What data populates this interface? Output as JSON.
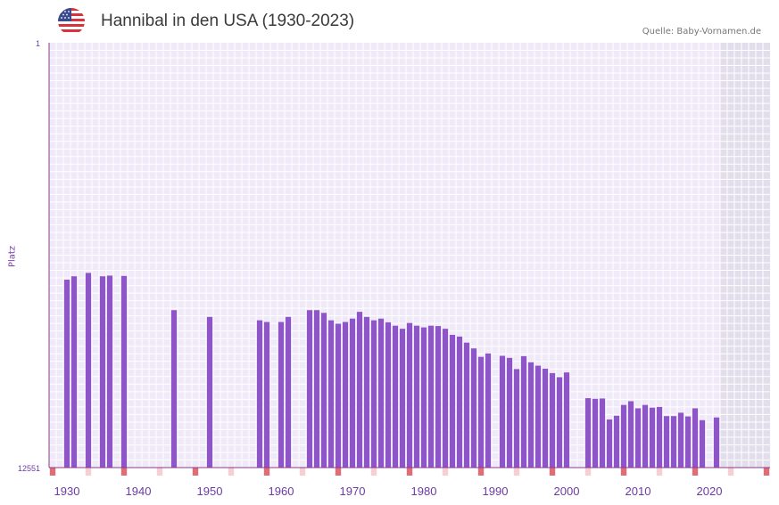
{
  "header": {
    "title": "Hannibal in den USA (1930-2023)",
    "source": "Quelle: Baby-Vornamen.de",
    "flag_icon": "us-flag-icon"
  },
  "colors": {
    "bar": "#8e55c8",
    "plot_bg": "#efe9f8",
    "shade_bg": "#e3deeb",
    "grid": "#ffffff",
    "axis": "#8a3a8a",
    "marker_strong": "#de6e76",
    "marker_light": "#f4cfd3",
    "xtick_text": "#6b3aa6"
  },
  "chart_data": {
    "type": "bar",
    "title": "Hannibal in den USA (1930-2023)",
    "xlabel": "",
    "ylabel": "Platz",
    "y_axis_inverted": true,
    "ylim": [
      1,
      12551
    ],
    "ytick_labels": [
      "1",
      "12551"
    ],
    "xlim": [
      1928,
      2029
    ],
    "xtick_labels": [
      "1930",
      "1940",
      "1950",
      "1960",
      "1970",
      "1980",
      "1990",
      "2000",
      "2010",
      "2020"
    ],
    "xticks": [
      1930,
      1940,
      1950,
      1960,
      1970,
      1980,
      1990,
      2000,
      2010,
      2020
    ],
    "shaded_from_year": 2022,
    "strong_marker_years": [
      1928,
      1938,
      1948,
      1958,
      1968,
      1978,
      1988,
      1998,
      2008,
      2018,
      2028
    ],
    "light_marker_years": [
      1933,
      1943,
      1953,
      1963,
      1973,
      1983,
      1993,
      2003,
      2013,
      2023
    ],
    "years": [
      1930,
      1931,
      1933,
      1935,
      1936,
      1938,
      1945,
      1950,
      1957,
      1958,
      1960,
      1961,
      1964,
      1965,
      1966,
      1967,
      1968,
      1969,
      1970,
      1971,
      1972,
      1973,
      1974,
      1975,
      1976,
      1977,
      1978,
      1979,
      1980,
      1981,
      1982,
      1983,
      1984,
      1985,
      1986,
      1987,
      1988,
      1989,
      1991,
      1992,
      1993,
      1994,
      1995,
      1996,
      1997,
      1998,
      1999,
      2000,
      2003,
      2004,
      2005,
      2006,
      2007,
      2008,
      2009,
      2010,
      2011,
      2012,
      2013,
      2014,
      2015,
      2016,
      2017,
      2018,
      2019,
      2021
    ],
    "ranks": [
      7000,
      6900,
      6800,
      6900,
      6880,
      6890,
      7900,
      8100,
      8200,
      8250,
      8250,
      8100,
      7900,
      7900,
      7980,
      8200,
      8300,
      8250,
      8150,
      7950,
      8100,
      8200,
      8150,
      8260,
      8360,
      8450,
      8280,
      8360,
      8410,
      8360,
      8370,
      8450,
      8630,
      8680,
      8860,
      9030,
      9280,
      9180,
      9250,
      9310,
      9640,
      9260,
      9440,
      9540,
      9630,
      9760,
      9880,
      9740,
      10500,
      10520,
      10510,
      11130,
      11020,
      10700,
      10590,
      10800,
      10700,
      10780,
      10760,
      11030,
      11030,
      10930,
      11040,
      10800,
      11150,
      11070
    ]
  }
}
